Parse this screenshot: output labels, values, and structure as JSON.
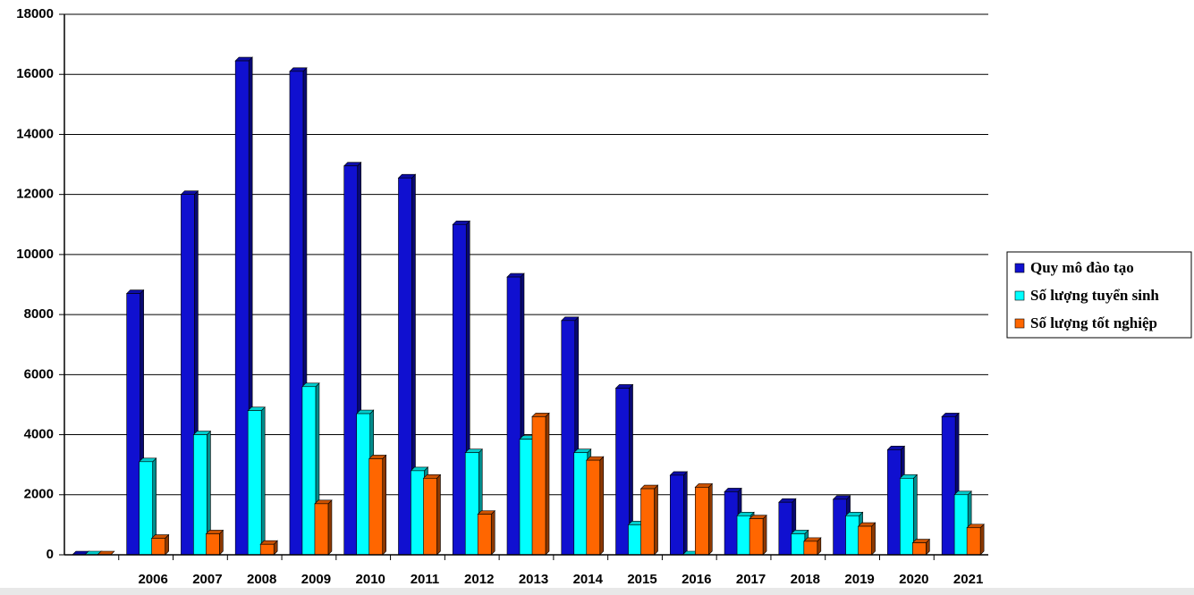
{
  "chart_data": {
    "type": "bar3d",
    "categories": [
      null,
      "2006",
      "2007",
      "2008",
      "2009",
      "2010",
      "2011",
      "2012",
      "2013",
      "2014",
      "2015",
      "2016",
      "2017",
      "2018",
      "2019",
      "2020",
      "2021"
    ],
    "series": [
      {
        "name": "Quy mô đào tạo",
        "color": "#1010d0",
        "values": [
          0,
          8700,
          12000,
          16450,
          16100,
          12950,
          12550,
          11000,
          9250,
          7800,
          5550,
          2650,
          2100,
          1750,
          1850,
          3500,
          4600
        ]
      },
      {
        "name": "Số lượng tuyển sinh",
        "color": "#00ffff",
        "values": [
          0,
          3100,
          4000,
          4800,
          5600,
          4700,
          2800,
          3400,
          3850,
          3400,
          1000,
          0,
          1300,
          700,
          1300,
          2550,
          2000
        ]
      },
      {
        "name": "Số lượng tốt nghiệp",
        "color": "#ff6600",
        "values": [
          0,
          550,
          700,
          350,
          1700,
          3200,
          2550,
          1350,
          4600,
          3150,
          2200,
          2250,
          1200,
          450,
          950,
          400,
          900
        ]
      }
    ],
    "ylim": [
      0,
      18000
    ],
    "yticks": [
      0,
      2000,
      4000,
      6000,
      8000,
      10000,
      12000,
      14000,
      16000,
      18000
    ],
    "grid": true,
    "legend": "right"
  }
}
